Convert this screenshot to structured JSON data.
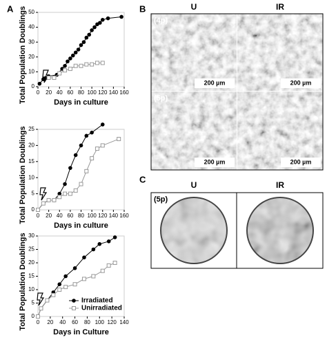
{
  "chart_data": [
    {
      "type": "line",
      "ylabel": "Total Population Doublings",
      "xlabel": "Days in culture",
      "xlim": [
        0,
        160
      ],
      "xticks": [
        0,
        20,
        40,
        60,
        80,
        100,
        120,
        140,
        160
      ],
      "ylim": [
        0,
        50
      ],
      "yticks": [
        0,
        10,
        20,
        30,
        40,
        50
      ],
      "series": [
        {
          "color": "#000000",
          "marker": "filled",
          "x": [
            3,
            10,
            15,
            20,
            35,
            45,
            50,
            55,
            60,
            65,
            70,
            75,
            80,
            85,
            90,
            95,
            100,
            105,
            110,
            115,
            120,
            130,
            155
          ],
          "values": [
            2,
            5,
            6,
            7,
            8,
            12,
            14,
            17,
            19,
            21,
            23,
            25,
            28,
            30,
            33,
            35,
            38,
            40,
            42,
            43,
            45,
            46,
            47
          ]
        },
        {
          "color": "#999999",
          "marker": "open",
          "x": [
            20,
            30,
            40,
            50,
            60,
            70,
            80,
            90,
            100,
            110,
            120
          ],
          "values": [
            6,
            6,
            9,
            11,
            12,
            14,
            14,
            15,
            15,
            16,
            16
          ]
        }
      ]
    },
    {
      "type": "line",
      "ylabel": "Total Population Doublings",
      "xlabel": "Days in culture",
      "xlim": [
        0,
        160
      ],
      "xticks": [
        0,
        20,
        40,
        60,
        80,
        100,
        120,
        140,
        160
      ],
      "ylim": [
        0,
        25
      ],
      "yticks": [
        0,
        5,
        10,
        15,
        20,
        25
      ],
      "series": [
        {
          "color": "#000000",
          "marker": "filled",
          "x": [
            0,
            10,
            20,
            30,
            40,
            50,
            60,
            70,
            80,
            90,
            100,
            120
          ],
          "values": [
            0,
            2,
            3,
            3,
            5,
            8,
            13,
            17,
            20,
            23,
            24,
            26.5
          ]
        },
        {
          "color": "#999999",
          "marker": "open",
          "x": [
            0,
            10,
            20,
            30,
            40,
            50,
            60,
            70,
            80,
            90,
            100,
            110,
            120,
            150
          ],
          "values": [
            0,
            2,
            3,
            3,
            4,
            5,
            5,
            6,
            8,
            12,
            16,
            19,
            20,
            22
          ]
        }
      ]
    },
    {
      "type": "line",
      "ylabel": "Total Population Doublings",
      "xlabel": "Days in Culture",
      "xlim": [
        0,
        140
      ],
      "xticks": [
        0,
        20,
        40,
        60,
        80,
        100,
        120,
        140
      ],
      "ylim": [
        0,
        30
      ],
      "yticks": [
        0,
        5,
        10,
        15,
        20,
        25,
        30
      ],
      "legend": "lower right",
      "series": [
        {
          "name": "Irradiated",
          "color": "#000000",
          "marker": "filled",
          "x": [
            0,
            5,
            15,
            25,
            35,
            45,
            60,
            75,
            90,
            100,
            115,
            125
          ],
          "values": [
            0,
            3,
            6,
            9,
            12,
            15,
            18,
            22,
            25,
            27,
            28,
            29.5
          ]
        },
        {
          "name": "Unirradiated",
          "color": "#999999",
          "marker": "open",
          "x": [
            0,
            5,
            15,
            25,
            35,
            45,
            60,
            75,
            90,
            105,
            115,
            125
          ],
          "values": [
            0,
            3,
            6,
            8,
            10,
            11,
            12,
            14,
            15,
            17,
            19,
            20
          ]
        }
      ]
    }
  ],
  "panels": {
    "a_label": "A",
    "b_label": "B",
    "c_label": "C",
    "b_columns": [
      "U",
      "IR"
    ],
    "b_rows": [
      "(4p)",
      "(5p)"
    ],
    "scale_bar": "200 µm",
    "c_columns": [
      "U",
      "IR"
    ],
    "c_row": "(5p)"
  }
}
